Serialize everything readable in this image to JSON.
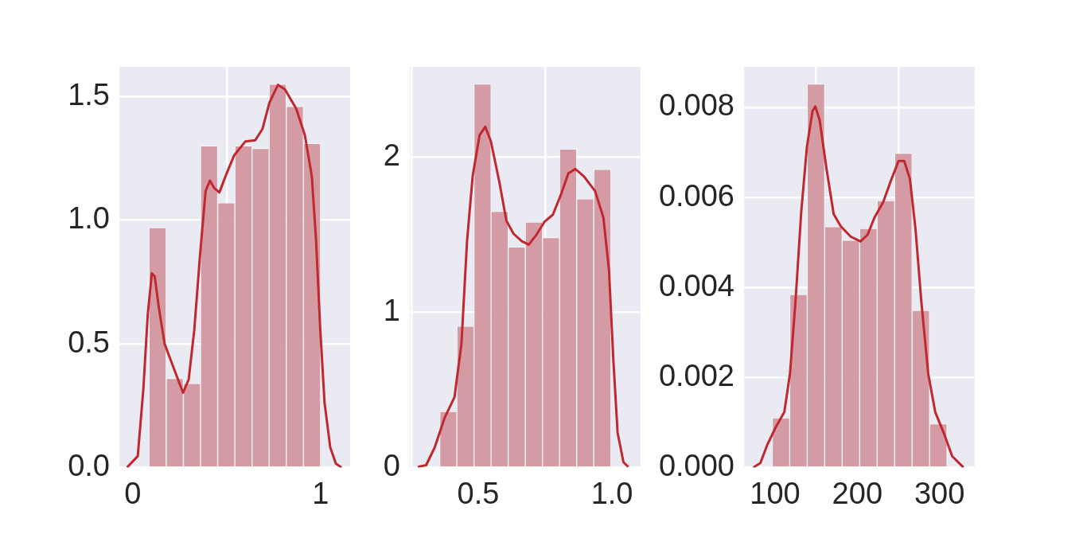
{
  "chart_data": [
    {
      "type": "histogram",
      "bins": [
        0.087,
        0.178,
        0.27,
        0.361,
        0.452,
        0.544,
        0.635,
        0.726,
        0.817,
        0.909,
        1.0
      ],
      "values": [
        0.97,
        0.36,
        0.34,
        1.3,
        1.07,
        1.3,
        1.29,
        1.55,
        1.46,
        1.31
      ],
      "color": "#d59ba5",
      "series": [
        {
          "type": "line",
          "color": "#c0282f",
          "x": [
            -0.03,
            0.027,
            0.057,
            0.08,
            0.102,
            0.117,
            0.14,
            0.17,
            0.223,
            0.268,
            0.298,
            0.328,
            0.358,
            0.388,
            0.411,
            0.434,
            0.461,
            0.494,
            0.539,
            0.599,
            0.652,
            0.69,
            0.728,
            0.773,
            0.81,
            0.87,
            0.916,
            0.953,
            0.976,
            0.998,
            1.021,
            1.051,
            1.081,
            1.111
          ],
          "values": [
            0,
            0.046,
            0.32,
            0.618,
            0.785,
            0.773,
            0.642,
            0.499,
            0.392,
            0.302,
            0.356,
            0.559,
            0.856,
            1.118,
            1.16,
            1.13,
            1.112,
            1.178,
            1.261,
            1.318,
            1.323,
            1.368,
            1.476,
            1.547,
            1.529,
            1.451,
            1.344,
            1.178,
            0.916,
            0.559,
            0.261,
            0.082,
            0.016,
            0
          ]
        }
      ],
      "xlim": [
        -0.071,
        1.157
      ],
      "xticks": [
        0,
        1
      ],
      "ylim": [
        0,
        1.62
      ],
      "yticks": [
        {
          "value": 0,
          "label": "0.0"
        },
        {
          "value": 0.5,
          "label": "0.5"
        },
        {
          "value": 1,
          "label": "1.0"
        },
        {
          "value": 1.5,
          "label": "1.5"
        }
      ],
      "grid": true
    },
    {
      "type": "histogram",
      "bins": [
        0.356,
        0.42,
        0.484,
        0.548,
        0.612,
        0.676,
        0.74,
        0.804,
        0.868,
        0.932,
        0.996
      ],
      "values": [
        0.36,
        0.91,
        2.47,
        1.65,
        1.42,
        1.58,
        1.48,
        2.05,
        1.73,
        1.92
      ],
      "color": "#d59ba5",
      "series": [
        {
          "type": "line",
          "color": "#c0282f",
          "x": [
            0.274,
            0.305,
            0.337,
            0.374,
            0.411,
            0.437,
            0.458,
            0.479,
            0.505,
            0.526,
            0.547,
            0.579,
            0.605,
            0.632,
            0.663,
            0.689,
            0.716,
            0.747,
            0.779,
            0.81,
            0.837,
            0.863,
            0.895,
            0.937,
            0.968,
            0.989,
            1.005,
            1.021,
            1.043,
            1.061
          ],
          "values": [
            0.004,
            0.015,
            0.129,
            0.319,
            0.452,
            0.794,
            1.457,
            1.875,
            2.14,
            2.194,
            2.102,
            1.837,
            1.59,
            1.505,
            1.457,
            1.435,
            1.495,
            1.581,
            1.628,
            1.761,
            1.894,
            1.922,
            1.875,
            1.78,
            1.609,
            1.268,
            0.698,
            0.224,
            0.034,
            0.004
          ]
        }
      ],
      "xlim": [
        0.244,
        1.107
      ],
      "xticks": [
        {
          "value": 0.5,
          "label": "0.5"
        },
        {
          "value": 1,
          "label": "1.0"
        }
      ],
      "ylim": [
        0,
        2.58
      ],
      "yticks": [
        0,
        1,
        2
      ],
      "grid": true
    },
    {
      "type": "histogram",
      "bins": [
        96.6,
        117.9,
        139.1,
        160.4,
        181.6,
        202.9,
        224.2,
        245.4,
        266.7,
        287.9,
        309.2
      ],
      "values": [
        0.0011,
        0.00384,
        0.00852,
        0.00535,
        0.00505,
        0.00531,
        0.00593,
        0.00698,
        0.00349,
        0.00097
      ],
      "color": "#d59ba5",
      "series": [
        {
          "type": "line",
          "color": "#c0282f",
          "x": [
            73.6,
            82.2,
            90.7,
            101.0,
            111.3,
            118.2,
            125.0,
            131.9,
            138.8,
            145.6,
            149.0,
            154.2,
            162.8,
            171.3,
            179.9,
            191.9,
            203.9,
            212.5,
            221.1,
            231.4,
            241.7,
            250.2,
            257.1,
            264.0,
            270.8,
            277.7,
            286.2,
            294.8,
            305.1,
            315.4,
            329.1
          ],
          "values": [
            0.0,
            0.0001,
            0.00051,
            0.0009,
            0.00123,
            0.00209,
            0.00372,
            0.00569,
            0.00713,
            0.00792,
            0.00802,
            0.00772,
            0.00661,
            0.00563,
            0.00536,
            0.00513,
            0.00502,
            0.00517,
            0.00556,
            0.00589,
            0.00641,
            0.00681,
            0.00681,
            0.00641,
            0.0053,
            0.00372,
            0.00209,
            0.00123,
            0.00077,
            0.00025,
            0.0
          ]
        }
      ],
      "xlim": [
        62.3,
        342.9
      ],
      "xticks": [
        100,
        200,
        300
      ],
      "ylim": [
        0,
        0.0089
      ],
      "yticks": [
        {
          "value": 0,
          "label": "0.000"
        },
        {
          "value": 0.002,
          "label": "0.002"
        },
        {
          "value": 0.004,
          "label": "0.004"
        },
        {
          "value": 0.006,
          "label": "0.006"
        },
        {
          "value": 0.008,
          "label": "0.008"
        }
      ],
      "grid": true
    }
  ]
}
